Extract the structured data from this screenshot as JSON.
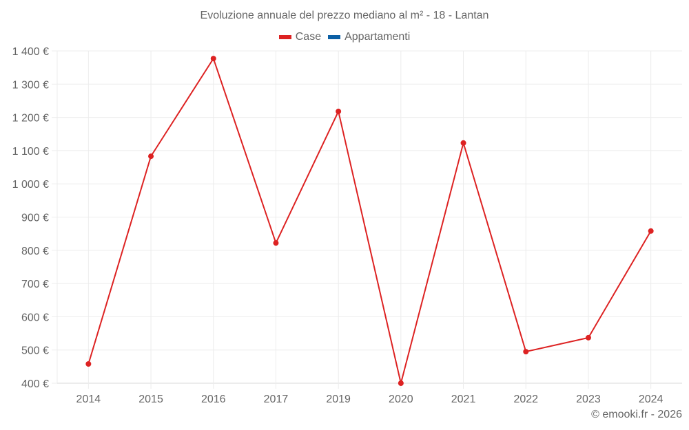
{
  "chart": {
    "title": "Evoluzione annuale del prezzo mediano al m² - 18 - Lantan",
    "legend": [
      {
        "label": "Case",
        "color": "#dd2222"
      },
      {
        "label": "Appartamenti",
        "color": "#0b5fa5"
      }
    ],
    "credit": "© emooki.fr - 2026"
  },
  "chart_data": {
    "type": "line",
    "title": "Evoluzione annuale del prezzo mediano al m² - 18 - Lantan",
    "xlabel": "",
    "ylabel": "",
    "categories": [
      "2014",
      "2015",
      "2016",
      "2017",
      "2019",
      "2020",
      "2021",
      "2022",
      "2023",
      "2024"
    ],
    "series": [
      {
        "name": "Case",
        "color": "#dd2222",
        "values": [
          458,
          1083,
          1377,
          822,
          1218,
          400,
          1123,
          495,
          537,
          858
        ]
      },
      {
        "name": "Appartamenti",
        "color": "#0b5fa5",
        "values": []
      }
    ],
    "yticks": [
      "400 €",
      "500 €",
      "600 €",
      "700 €",
      "800 €",
      "900 €",
      "1 000 €",
      "1 100 €",
      "1 200 €",
      "1 300 €",
      "1 400 €"
    ],
    "ylim": [
      400,
      1400
    ],
    "grid": true,
    "legend_position": "top"
  }
}
